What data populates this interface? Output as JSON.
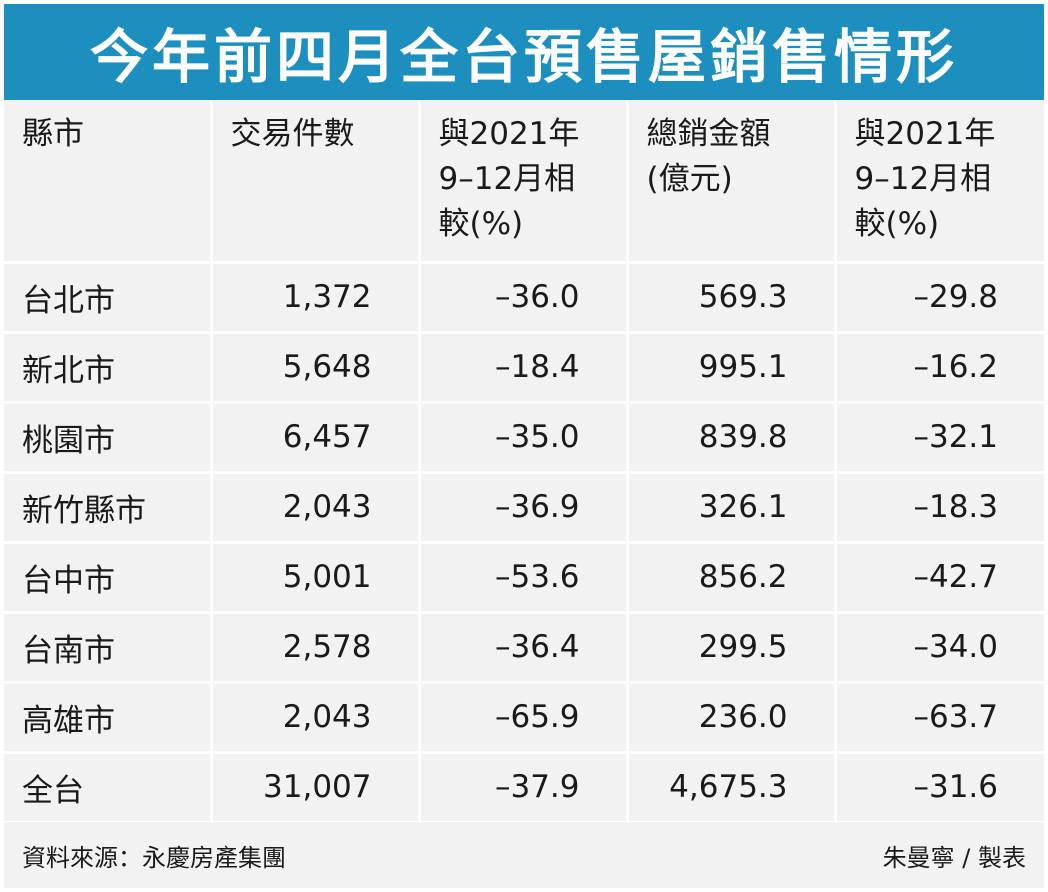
{
  "title": "今年前四月全台預售屋銷售情形",
  "headers": [
    {
      "line1": "縣市",
      "line2": "",
      "line3": ""
    },
    {
      "line1": "交易件數",
      "line2": "",
      "line3": ""
    },
    {
      "line1": "與2021年",
      "line2": "9–12月相",
      "line3": "較(%)"
    },
    {
      "line1": "總銷金額",
      "line2": "(億元)",
      "line3": ""
    },
    {
      "line1": "與2021年",
      "line2": "9–12月相",
      "line3": "較(%)"
    }
  ],
  "rows": [
    {
      "city": "台北市",
      "count": "1,372",
      "count_change": "–36.0",
      "total": "569.3",
      "total_change": "–29.8"
    },
    {
      "city": "新北市",
      "count": "5,648",
      "count_change": "–18.4",
      "total": "995.1",
      "total_change": "–16.2"
    },
    {
      "city": "桃園市",
      "count": "6,457",
      "count_change": "–35.0",
      "total": "839.8",
      "total_change": "–32.1"
    },
    {
      "city": "新竹縣市",
      "count": "2,043",
      "count_change": "–36.9",
      "total": "326.1",
      "total_change": "–18.3"
    },
    {
      "city": "台中市",
      "count": "5,001",
      "count_change": "–53.6",
      "total": "856.2",
      "total_change": "–42.7"
    },
    {
      "city": "台南市",
      "count": "2,578",
      "count_change": "–36.4",
      "total": "299.5",
      "total_change": "–34.0"
    },
    {
      "city": "高雄市",
      "count": "2,043",
      "count_change": "–65.9",
      "total": "236.0",
      "total_change": "–63.7"
    },
    {
      "city": "全台",
      "count": "31,007",
      "count_change": "–37.9",
      "total": "4,675.3",
      "total_change": "–31.6"
    }
  ],
  "footer": {
    "source": "資料來源：永慶房產集團",
    "credit": "朱曼寧 / 製表"
  },
  "colors": {
    "title_bg": "#1d8fbf",
    "table_bg": "#f2f2f2"
  }
}
